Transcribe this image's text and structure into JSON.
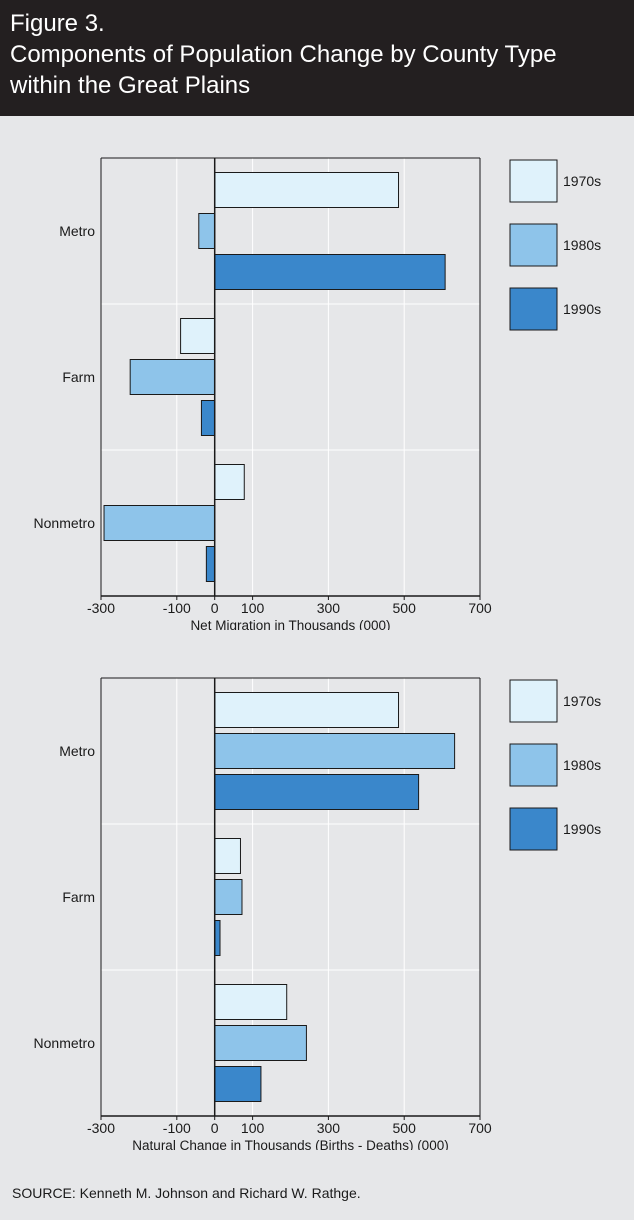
{
  "figure": {
    "label": "Figure 3.",
    "title_line1": "Components of Population Change by County Type",
    "title_line2": "within the Great Plains"
  },
  "source": "SOURCE: Kenneth M. Johnson and Richard W. Rathge.",
  "colors": {
    "1970s": "#dff2fb",
    "1980s": "#8ec4ea",
    "1990s": "#3a87cb",
    "bar_stroke": "#1a1a1a",
    "grid": "#ffffff"
  },
  "chart_data": [
    {
      "type": "bar",
      "orientation": "horizontal",
      "categories": [
        "Metro",
        "Farm",
        "Nonmetro"
      ],
      "series": [
        {
          "name": "1970s",
          "values": [
            485,
            -90,
            78
          ]
        },
        {
          "name": "1980s",
          "values": [
            -42,
            -223,
            -292
          ]
        },
        {
          "name": "1990s",
          "values": [
            608,
            -35,
            -22
          ]
        }
      ],
      "xlabel": "Net Migration in Thousands (000)",
      "xlim": [
        -300,
        700
      ],
      "xticks": [
        -300,
        -100,
        0,
        100,
        300,
        500,
        700
      ],
      "grid": true,
      "legend": "right"
    },
    {
      "type": "bar",
      "orientation": "horizontal",
      "categories": [
        "Metro",
        "Farm",
        "Nonmetro"
      ],
      "series": [
        {
          "name": "1970s",
          "values": [
            485,
            68,
            190
          ]
        },
        {
          "name": "1980s",
          "values": [
            633,
            72,
            242
          ]
        },
        {
          "name": "1990s",
          "values": [
            538,
            14,
            122
          ]
        }
      ],
      "xlabel": "Natural Change in Thousands (Births - Deaths) (000)",
      "xlim": [
        -300,
        700
      ],
      "xticks": [
        -300,
        -100,
        0,
        100,
        300,
        500,
        700
      ],
      "grid": true,
      "legend": "right"
    }
  ]
}
